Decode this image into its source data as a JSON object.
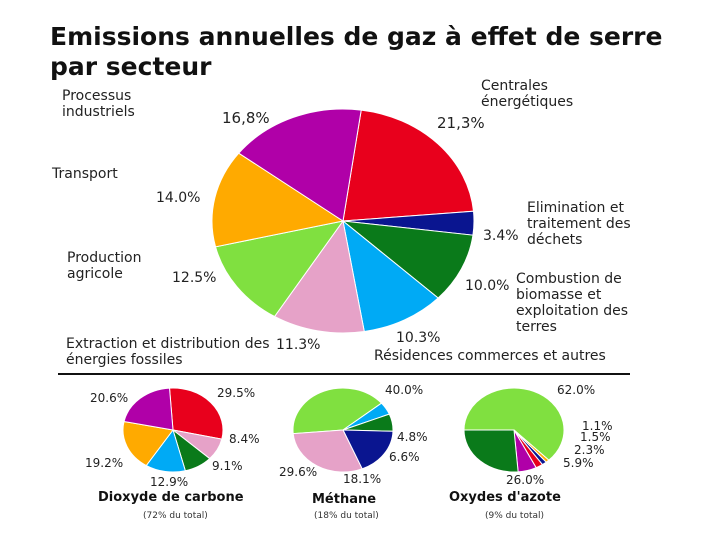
{
  "title": "Emissions annuelles de gaz à effet de serre par secteur",
  "main_chart": {
    "type": "pie",
    "slices": [
      {
        "label": "Centrales énergétiques",
        "value": 21.3,
        "pct": "21,3%",
        "color": "#e8001c"
      },
      {
        "label": "Elimination et traitement des déchets",
        "value": 3.4,
        "pct": "3.4%",
        "color": "#0a1590"
      },
      {
        "label": "Combustion de biomasse et exploitation des terres",
        "value": 10.0,
        "pct": "10.0%",
        "color": "#0a7a1a"
      },
      {
        "label": "Résidences commerces et autres",
        "value": 10.3,
        "pct": "10.3%",
        "color": "#00aaf5"
      },
      {
        "label": "Extraction et distribution des énergies fossiles",
        "value": 11.3,
        "pct": "11.3%",
        "color": "#e6a2c8"
      },
      {
        "label": "Production agricole",
        "value": 12.5,
        "pct": "12.5%",
        "color": "#80e040"
      },
      {
        "label": "Transport",
        "value": 14.0,
        "pct": "14.0%",
        "color": "#ffaa00"
      },
      {
        "label": "Processus industriels",
        "value": 16.8,
        "pct": "16,8%",
        "color": "#b000a8"
      }
    ]
  },
  "small_charts": [
    {
      "title": "Dioxyde de carbone",
      "note": "(72% du total)",
      "slices": [
        {
          "value": 29.5,
          "pct": "29.5%",
          "color": "#e8001c"
        },
        {
          "value": 8.4,
          "pct": "8.4%",
          "color": "#e6a2c8"
        },
        {
          "value": 9.1,
          "pct": "9.1%",
          "color": "#0a7a1a"
        },
        {
          "value": 12.9,
          "pct": "12.9%",
          "color": "#00aaf5"
        },
        {
          "value": 19.2,
          "pct": "19.2%",
          "color": "#ffaa00"
        },
        {
          "value": 20.6,
          "pct": "20.6%",
          "color": "#b000a8"
        }
      ]
    },
    {
      "title": "Méthane",
      "note": "(18% du total)",
      "slices": [
        {
          "value": 40.0,
          "pct": "40.0%",
          "color": "#80e040"
        },
        {
          "value": 4.8,
          "pct": "4.8%",
          "color": "#00aaf5"
        },
        {
          "value": 6.6,
          "pct": "6.6%",
          "color": "#0a7a1a"
        },
        {
          "value": 18.1,
          "pct": "18.1%",
          "color": "#0a1590"
        },
        {
          "value": 29.6,
          "pct": "29.6%",
          "color": "#e6a2c8"
        }
      ]
    },
    {
      "title": "Oxydes d'azote",
      "note": "(9% du total)",
      "slices": [
        {
          "value": 62.0,
          "pct": "62.0%",
          "color": "#80e040"
        },
        {
          "value": 1.1,
          "pct": "1.1%",
          "color": "#ffaa00"
        },
        {
          "value": 1.5,
          "pct": "1.5%",
          "color": "#0a1590"
        },
        {
          "value": 2.3,
          "pct": "2.3%",
          "color": "#e8001c"
        },
        {
          "value": 5.9,
          "pct": "5.9%",
          "color": "#b000a8"
        },
        {
          "value": 26.0,
          "pct": "26.0%",
          "color": "#0a7a1a"
        }
      ]
    }
  ]
}
